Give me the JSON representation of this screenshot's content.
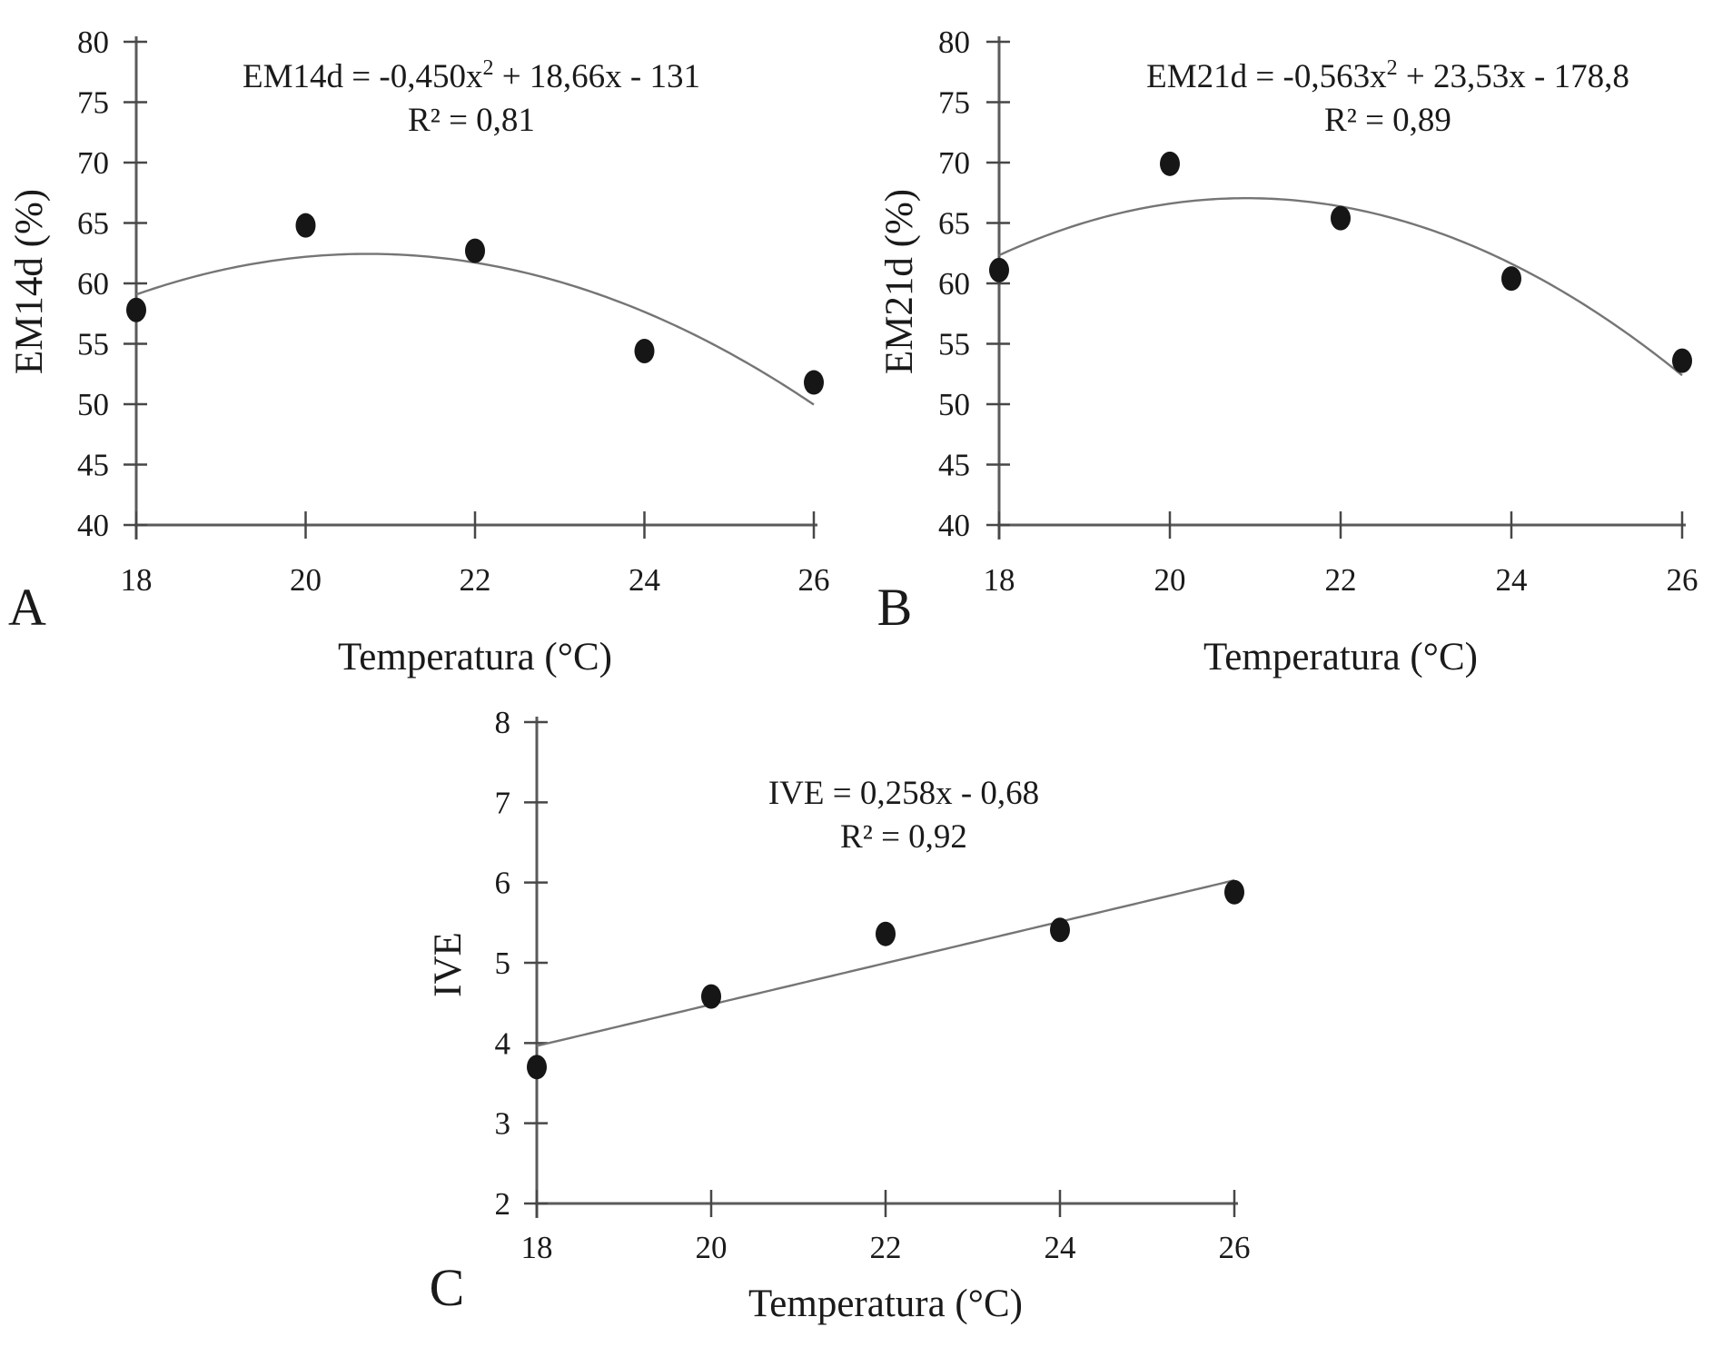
{
  "figure": {
    "background": "#ffffff",
    "xlabel_shared": "Temperatura (°C)"
  },
  "colors": {
    "axis": "#5a5a5a",
    "tick": "#474747",
    "text": "#1a1a1a",
    "point": "#161616",
    "curve": "#757575"
  },
  "chart_data": [
    {
      "id": "A",
      "type": "scatter",
      "panel_label": "A",
      "xlabel": "Temperatura (°C)",
      "ylabel": "EM14d (%)",
      "x_range": [
        18,
        26
      ],
      "y_range": [
        40,
        80
      ],
      "x_ticks": [
        18,
        20,
        22,
        24,
        26
      ],
      "y_ticks": [
        40,
        45,
        50,
        55,
        60,
        65,
        70,
        75,
        80
      ],
      "x": [
        18,
        20,
        22,
        24,
        26
      ],
      "y": [
        57.8,
        64.8,
        62.7,
        54.4,
        51.8
      ],
      "fit": {
        "kind": "quadratic",
        "coeffs": [
          -0.45,
          18.66,
          -131
        ],
        "label_before_sup": "EM14d = -0,450x",
        "label_sup": "2",
        "label_after_sup": " + 18,66x - 131"
      },
      "r2_label": "R² = 0,81",
      "legend": "none",
      "grid": false
    },
    {
      "id": "B",
      "type": "scatter",
      "panel_label": "B",
      "xlabel": "Temperatura (°C)",
      "ylabel": "EM21d (%)",
      "x_range": [
        18,
        26
      ],
      "y_range": [
        40,
        80
      ],
      "x_ticks": [
        18,
        20,
        22,
        24,
        26
      ],
      "y_ticks": [
        40,
        45,
        50,
        55,
        60,
        65,
        70,
        75,
        80
      ],
      "x": [
        18,
        20,
        22,
        24,
        26
      ],
      "y": [
        61.1,
        69.9,
        65.4,
        60.4,
        53.6
      ],
      "fit": {
        "kind": "quadratic",
        "coeffs": [
          -0.563,
          23.53,
          -178.8
        ],
        "label_before_sup": "EM21d = -0,563x",
        "label_sup": "2",
        "label_after_sup": " + 23,53x - 178,8"
      },
      "r2_label": "R² = 0,89",
      "legend": "none",
      "grid": false
    },
    {
      "id": "C",
      "type": "scatter",
      "panel_label": "C",
      "xlabel": "Temperatura (°C)",
      "ylabel": "IVE",
      "x_range": [
        18,
        26
      ],
      "y_range": [
        2,
        8
      ],
      "x_ticks": [
        18,
        20,
        22,
        24,
        26
      ],
      "y_ticks": [
        2,
        3,
        4,
        5,
        6,
        7,
        8
      ],
      "x": [
        18,
        20,
        22,
        24,
        26
      ],
      "y": [
        3.7,
        4.58,
        5.36,
        5.41,
        5.88
      ],
      "fit": {
        "kind": "linear",
        "coeffs": [
          0.258,
          -0.68
        ],
        "label_before_sup": "IVE = 0,258x - 0,68",
        "label_sup": "",
        "label_after_sup": ""
      },
      "r2_label": "R² = 0,92",
      "legend": "none",
      "grid": false
    }
  ]
}
